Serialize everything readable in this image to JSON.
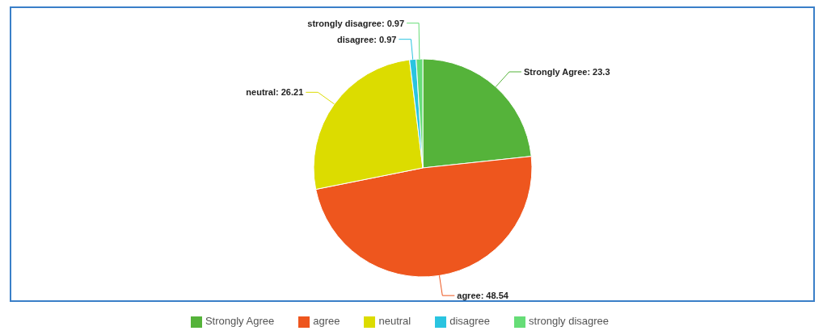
{
  "chart_data": {
    "type": "pie",
    "categories": [
      "Strongly Agree",
      "agree",
      "neutral",
      "disagree",
      "strongly disagree"
    ],
    "values": [
      23.3,
      48.54,
      26.21,
      0.97,
      0.97
    ],
    "colors": [
      "#55b33a",
      "#ee561e",
      "#dcdc00",
      "#2ac4e0",
      "#66dd77"
    ],
    "value_labels": [
      "Strongly Agree: 23.3",
      "agree: 48.54",
      "neutral: 26.21",
      "disagree: 0.97",
      "strongly disagree: 0.97"
    ],
    "legend": "bottom"
  }
}
